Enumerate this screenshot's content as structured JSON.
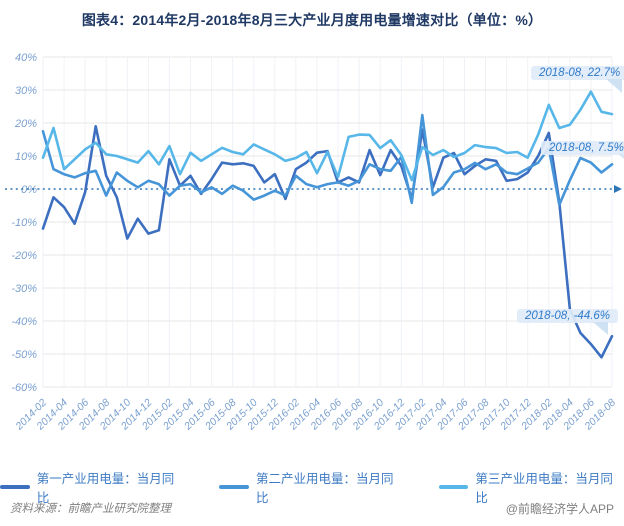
{
  "title": "图表4：2014年2月-2018年8月三大产业月度用电量增速对比（单位：%）",
  "footer": {
    "source": "资料来源：前瞻产业研究院整理",
    "watermark": "@前瞻经济学人APP"
  },
  "colors": {
    "zero_line": "#2e75b6",
    "grid": "#e7e7e7",
    "vgrid": "#eef2f7",
    "tick_label": "#7aa0cf",
    "annotation_text": "#2f7ac9",
    "annotation_bg": "#e0ecf8",
    "title_text": "#1f3864",
    "legend_text": "#3e7bc4"
  },
  "chart_data": {
    "type": "line",
    "title": "图表4：2014年2月-2018年8月三大产业月度用电量增速对比（单位：%）",
    "xlabel": "",
    "ylabel": "",
    "ylim": [
      -60,
      40
    ],
    "ytick_step": 10,
    "y_ticks": [
      "40%",
      "30%",
      "20%",
      "10%",
      "0%",
      "-10%",
      "-20%",
      "-30%",
      "-40%",
      "-50%",
      "-60%"
    ],
    "x_tick_every": 2,
    "zero_line_style": "dotted-with-arrow",
    "grid": "horizontal-light",
    "legend_position": "bottom",
    "x": [
      "2014-02",
      "2014-03",
      "2014-04",
      "2014-05",
      "2014-06",
      "2014-07",
      "2014-08",
      "2014-09",
      "2014-10",
      "2014-11",
      "2014-12",
      "2015-01",
      "2015-02",
      "2015-03",
      "2015-04",
      "2015-05",
      "2015-06",
      "2015-07",
      "2015-08",
      "2015-09",
      "2015-10",
      "2015-11",
      "2015-12",
      "2016-01",
      "2016-02",
      "2016-03",
      "2016-04",
      "2016-05",
      "2016-06",
      "2016-07",
      "2016-08",
      "2016-09",
      "2016-10",
      "2016-11",
      "2016-12",
      "2017-01",
      "2017-02",
      "2017-03",
      "2017-04",
      "2017-05",
      "2017-06",
      "2017-07",
      "2017-08",
      "2017-09",
      "2017-10",
      "2017-11",
      "2017-12",
      "2018-01",
      "2018-02",
      "2018-03",
      "2018-04",
      "2018-05",
      "2018-06",
      "2018-07",
      "2018-08"
    ],
    "series": [
      {
        "name": "第一产业用电量：当月同比",
        "color": "#3d6fc0",
        "values": [
          -12,
          -2.5,
          -5.5,
          -10.5,
          -1,
          19,
          4,
          -2.5,
          -15,
          -9,
          -13.5,
          -12.5,
          9,
          1,
          4,
          -1.5,
          3,
          8,
          7.5,
          7.8,
          7,
          2,
          4.5,
          -3,
          6,
          8,
          11,
          11.5,
          2,
          3.5,
          2,
          11.8,
          4.2,
          11.8,
          7,
          -3,
          18,
          0.5,
          9.5,
          10.9,
          4.5,
          7,
          9,
          8.5,
          2.5,
          3,
          5,
          10,
          17,
          -4,
          -36.5,
          -43.6,
          -47,
          -51,
          -44.6
        ]
      },
      {
        "name": "第二产业用电量：当月同比",
        "color": "#4695d8",
        "values": [
          17.5,
          6,
          4.5,
          3.5,
          4.8,
          5.5,
          -2,
          5,
          2.5,
          0.5,
          2.5,
          1.5,
          -2,
          1,
          1.5,
          -1,
          0.5,
          -1.5,
          1,
          -0.5,
          -3.2,
          -2,
          -0.5,
          -2,
          4,
          1.5,
          0.5,
          1.5,
          2,
          1,
          2.5,
          7.5,
          6,
          5.5,
          9.7,
          -4.2,
          22.4,
          -1.8,
          0.6,
          5,
          6,
          7.9,
          6,
          7.5,
          5,
          4.5,
          6.2,
          8,
          12.4,
          -4.8,
          2.7,
          9.4,
          8,
          5,
          7.5
        ]
      },
      {
        "name": "第三产业用电量：当月同比",
        "color": "#57b7e9",
        "values": [
          9.5,
          18.5,
          6,
          9,
          12,
          14,
          10.5,
          10,
          9,
          8,
          11.5,
          7.5,
          13,
          4.5,
          11,
          8.5,
          10.5,
          12.5,
          11.2,
          10.5,
          13.5,
          12,
          10.5,
          8.5,
          9.4,
          11.2,
          4.8,
          11.2,
          3.6,
          15.8,
          16.5,
          16.4,
          12.4,
          14.8,
          10.3,
          2.7,
          12.7,
          10.3,
          11.8,
          9.7,
          10.9,
          13.3,
          12.7,
          12.4,
          10.9,
          11.2,
          9.5,
          16.5,
          25.5,
          18.5,
          19.5,
          24,
          29.5,
          23.4,
          22.7
        ]
      }
    ],
    "annotations": [
      {
        "label": "2018-08, 22.7%",
        "series": "第三产业用电量：当月同比",
        "x": "2018-08",
        "value": 22.7
      },
      {
        "label": "2018-08, 7.5%",
        "series": "第二产业用电量：当月同比",
        "x": "2018-08",
        "value": 7.5
      },
      {
        "label": "2018-08, -44.6%",
        "series": "第一产业用电量：当月同比",
        "x": "2018-08",
        "value": -44.6
      }
    ]
  },
  "legend": {
    "items": [
      {
        "label": "第一产业用电量：当月同比"
      },
      {
        "label": "第二产业用电量：当月同比"
      },
      {
        "label": "第三产业用电量：当月同比"
      }
    ]
  }
}
